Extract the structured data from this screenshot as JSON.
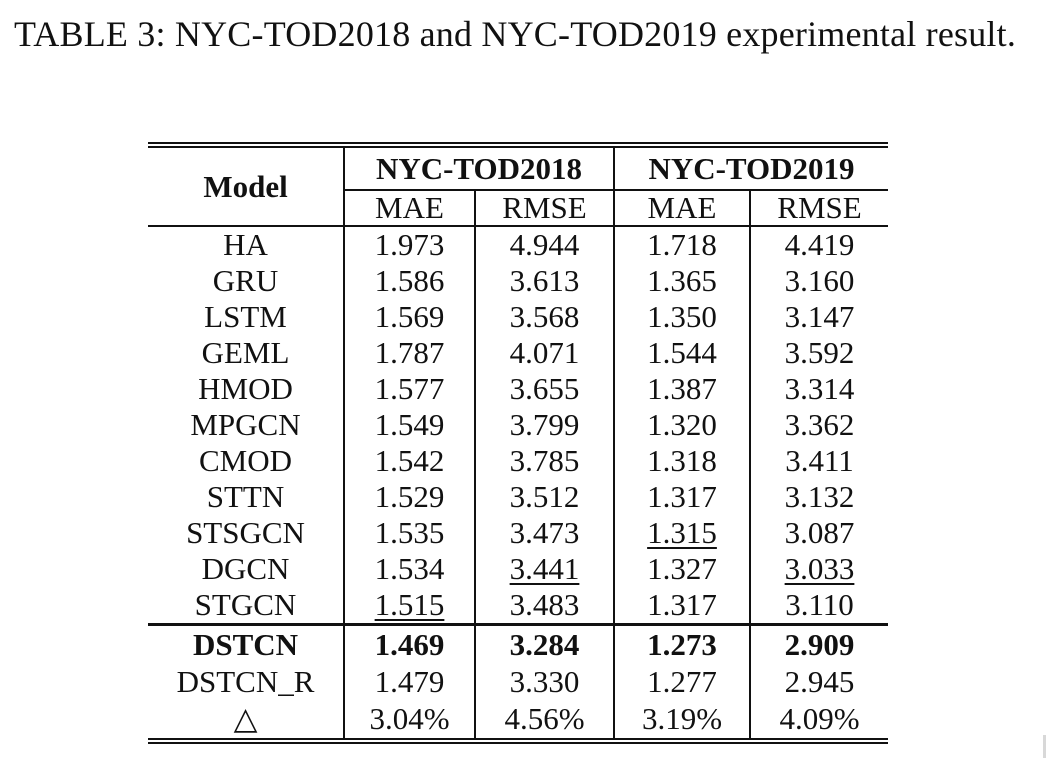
{
  "caption": "TABLE 3: NYC-TOD2018 and NYC-TOD2019 experimental result.",
  "header": {
    "model_label": "Model",
    "datasets": [
      "NYC-TOD2018",
      "NYC-TOD2019"
    ],
    "metrics": [
      "MAE",
      "RMSE",
      "MAE",
      "RMSE"
    ]
  },
  "rows": [
    {
      "model": "HA",
      "values": [
        "1.973",
        "4.944",
        "1.718",
        "4.419"
      ]
    },
    {
      "model": "GRU",
      "values": [
        "1.586",
        "3.613",
        "1.365",
        "3.160"
      ]
    },
    {
      "model": "LSTM",
      "values": [
        "1.569",
        "3.568",
        "1.350",
        "3.147"
      ]
    },
    {
      "model": "GEML",
      "values": [
        "1.787",
        "4.071",
        "1.544",
        "3.592"
      ]
    },
    {
      "model": "HMOD",
      "values": [
        "1.577",
        "3.655",
        "1.387",
        "3.314"
      ]
    },
    {
      "model": "MPGCN",
      "values": [
        "1.549",
        "3.799",
        "1.320",
        "3.362"
      ]
    },
    {
      "model": "CMOD",
      "values": [
        "1.542",
        "3.785",
        "1.318",
        "3.411"
      ]
    },
    {
      "model": "STTN",
      "values": [
        "1.529",
        "3.512",
        "1.317",
        "3.132"
      ]
    },
    {
      "model": "STSGCN",
      "values": [
        "1.535",
        "3.473",
        "1.315",
        "3.087"
      ],
      "underlined": [
        2
      ]
    },
    {
      "model": "DGCN",
      "values": [
        "1.534",
        "3.441",
        "1.327",
        "3.033"
      ],
      "underlined": [
        1,
        3
      ]
    },
    {
      "model": "STGCN",
      "values": [
        "1.515",
        "3.483",
        "1.317",
        "3.110"
      ],
      "underlined": [
        0
      ]
    },
    {
      "model": "DSTCN",
      "values": [
        "1.469",
        "3.284",
        "1.273",
        "2.909"
      ],
      "bold": true
    },
    {
      "model": "DSTCN_R",
      "values": [
        "1.479",
        "3.330",
        "1.277",
        "2.945"
      ]
    },
    {
      "model": "△",
      "values": [
        "3.04%",
        "4.56%",
        "3.19%",
        "4.09%"
      ]
    }
  ]
}
